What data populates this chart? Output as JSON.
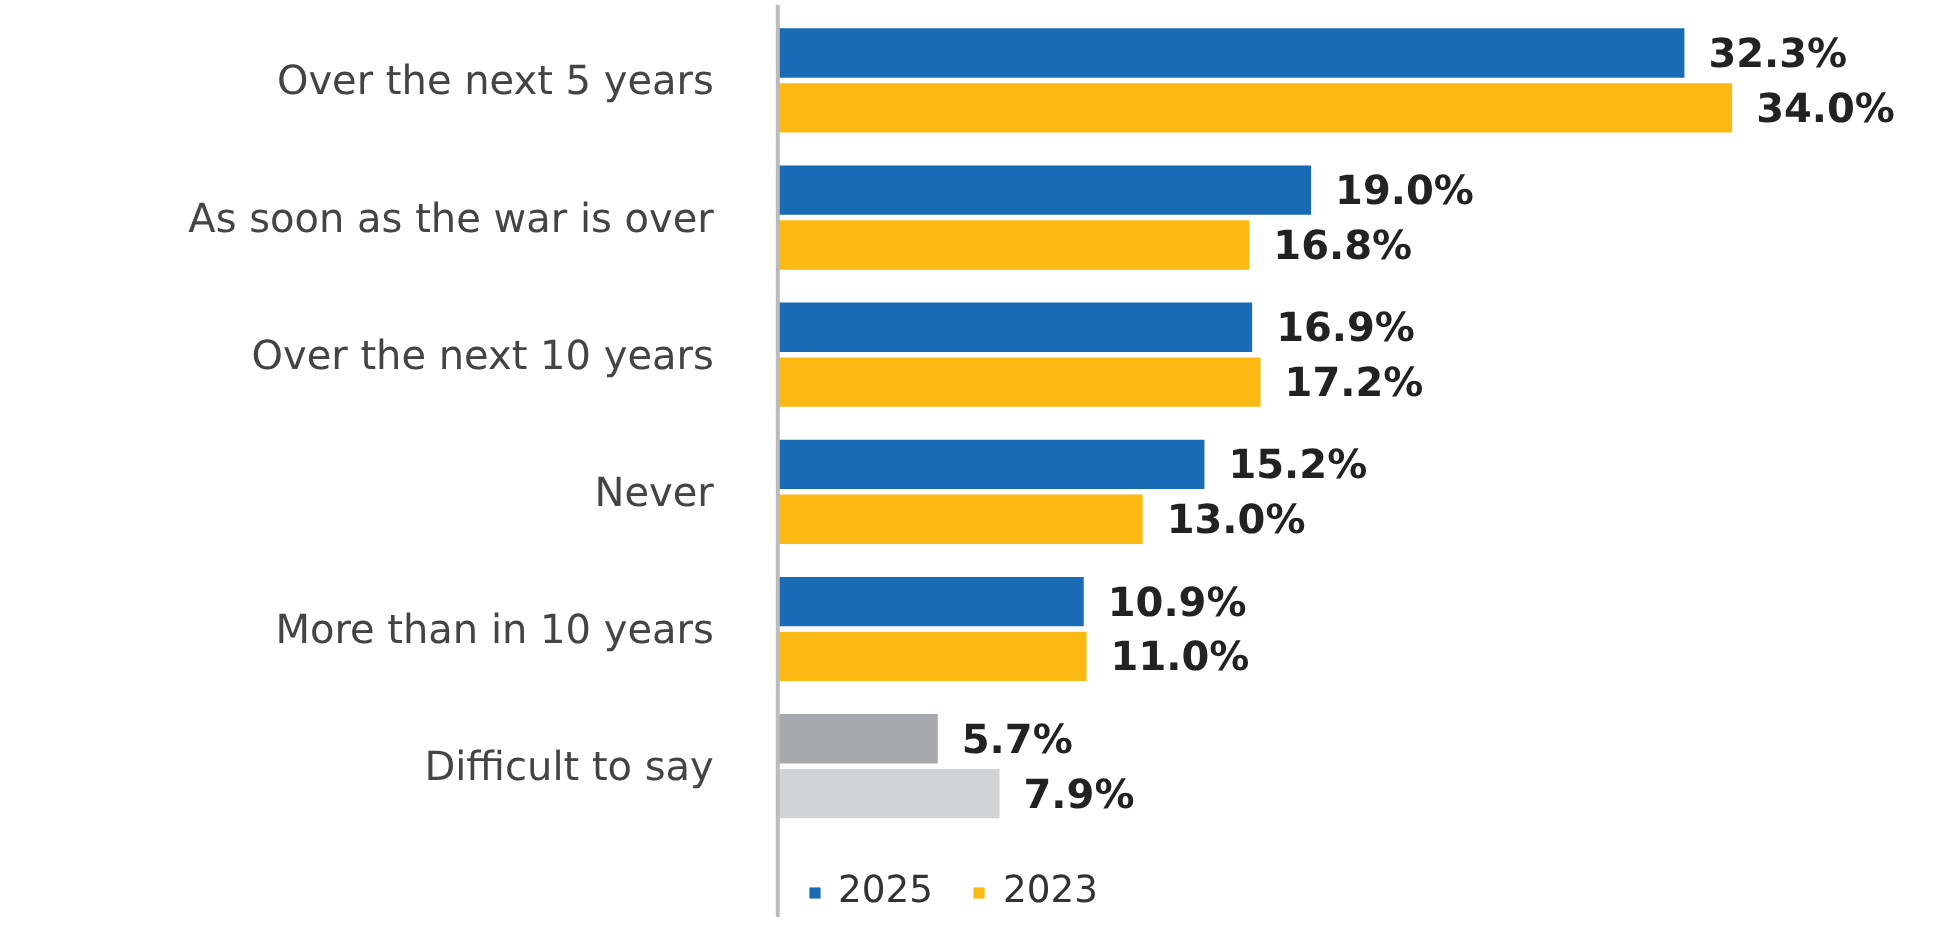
{
  "chart_data": {
    "type": "bar",
    "orientation": "horizontal",
    "categories": [
      "Over the next 5 years",
      "As soon as the war is over",
      "Over the next 10 years",
      "Never",
      "More than in 10 years",
      "Difficult to say"
    ],
    "series": [
      {
        "name": "2025",
        "color": "#1a6bb5",
        "colors": [
          "#1a6bb5",
          "#1a6bb5",
          "#1a6bb5",
          "#1a6bb5",
          "#1a6bb5",
          "#a7a9ac"
        ],
        "values": [
          32.3,
          19.0,
          16.9,
          15.2,
          10.9,
          5.7
        ],
        "value_labels": [
          "32.3%",
          "19.0%",
          "16.9%",
          "15.2%",
          "10.9%",
          "5.7%"
        ]
      },
      {
        "name": "2023",
        "color": "#fdb913",
        "colors": [
          "#fdb913",
          "#fdb913",
          "#fdb913",
          "#fdb913",
          "#fdb913",
          "#d1d3d4"
        ],
        "values": [
          34.0,
          16.8,
          17.2,
          13.0,
          11.0,
          7.9
        ],
        "value_labels": [
          "34.0%",
          "16.8%",
          "17.2%",
          "13.0%",
          "11.0%",
          "7.9%"
        ]
      }
    ],
    "legend": "bottom"
  }
}
